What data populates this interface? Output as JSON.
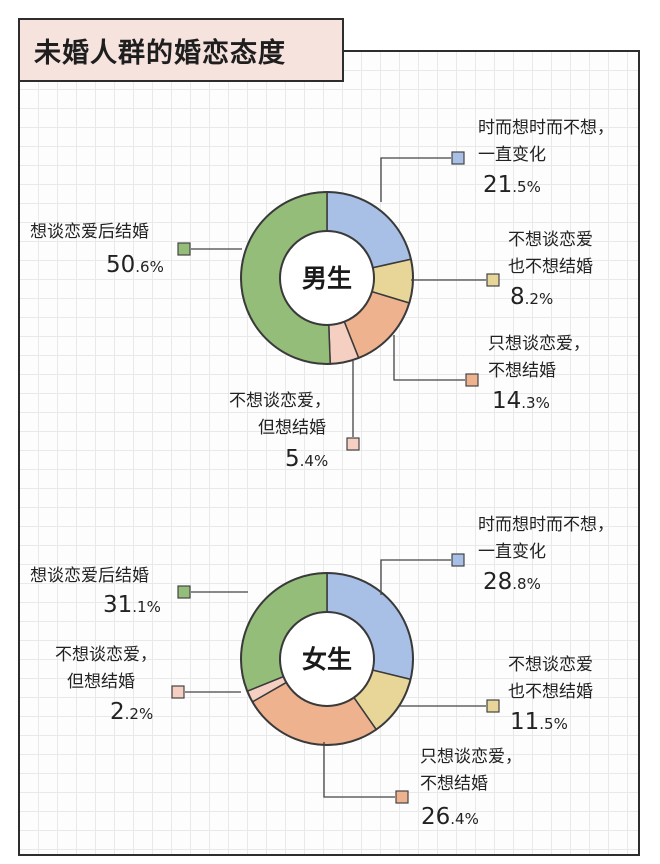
{
  "title": "未婚人群的婚恋态度",
  "colors": {
    "blue": "#a8c0e6",
    "yellow": "#e8d699",
    "orange": "#eeb28f",
    "pink": "#f4cfc2",
    "green": "#93bd79",
    "stroke": "#3a3a3a"
  },
  "chart_data": [
    {
      "type": "pie",
      "center_label": "男生",
      "series": [
        {
          "label": [
            "时而想时而不想，",
            "一直变化"
          ],
          "value": 21.5,
          "color": "blue"
        },
        {
          "label": [
            "不想谈恋爱",
            "也不想结婚"
          ],
          "value": 8.2,
          "color": "yellow"
        },
        {
          "label": [
            "只想谈恋爱，",
            "不想结婚"
          ],
          "value": 14.3,
          "color": "orange"
        },
        {
          "label": [
            "不想谈恋爱，",
            "但想结婚"
          ],
          "value": 5.4,
          "color": "pink"
        },
        {
          "label": [
            "想谈恋爱后结婚"
          ],
          "value": 50.6,
          "color": "green"
        }
      ]
    },
    {
      "type": "pie",
      "center_label": "女生",
      "series": [
        {
          "label": [
            "时而想时而不想，",
            "一直变化"
          ],
          "value": 28.8,
          "color": "blue"
        },
        {
          "label": [
            "不想谈恋爱",
            "也不想结婚"
          ],
          "value": 11.5,
          "color": "yellow"
        },
        {
          "label": [
            "只想谈恋爱，",
            "不想结婚"
          ],
          "value": 26.4,
          "color": "orange"
        },
        {
          "label": [
            "不想谈恋爱，",
            "但想结婚"
          ],
          "value": 2.2,
          "color": "pink"
        },
        {
          "label": [
            "想谈恋爱后结婚"
          ],
          "value": 31.1,
          "color": "green"
        }
      ]
    }
  ]
}
